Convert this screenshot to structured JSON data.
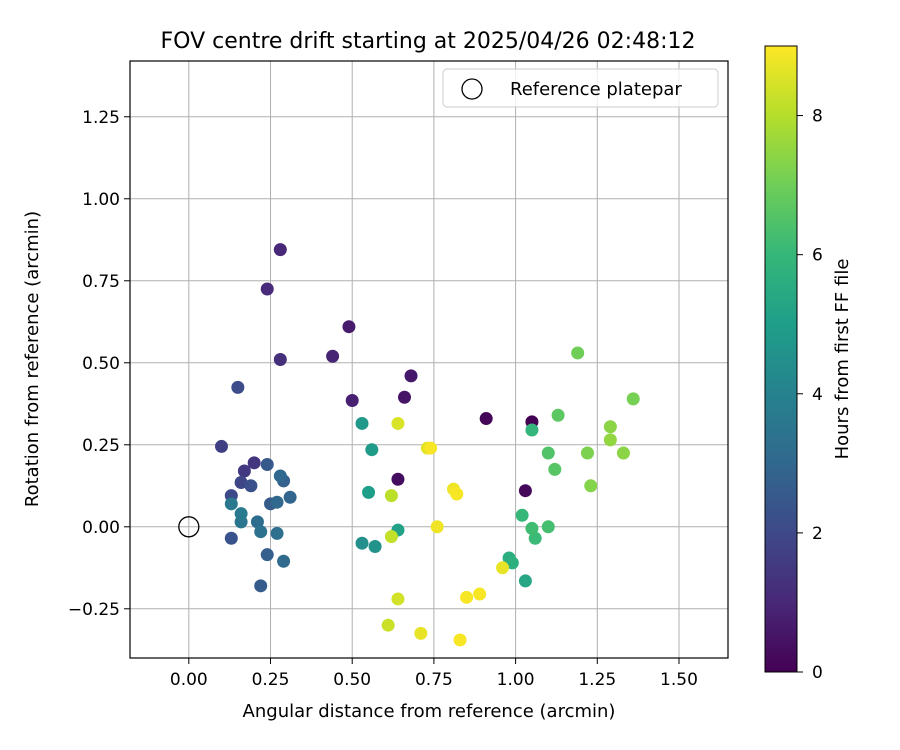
{
  "chart_data": {
    "type": "scatter",
    "title": "FOV centre drift starting at 2025/04/26 02:48:12",
    "xlabel": "Angular distance from reference (arcmin)",
    "ylabel": "Rotation from reference (arcmin)",
    "xlim": [
      -0.18,
      1.65
    ],
    "ylim": [
      -0.4,
      1.42
    ],
    "xticks": [
      "0.00",
      "0.25",
      "0.50",
      "0.75",
      "1.00",
      "1.25",
      "1.50"
    ],
    "yticks": [
      "−0.25",
      "0.00",
      "0.25",
      "0.50",
      "0.75",
      "1.00",
      "1.25"
    ],
    "grid": true,
    "legend": {
      "placement": "top-right",
      "entries": [
        {
          "label": "Reference platepar",
          "marker": "open-circle"
        }
      ]
    },
    "reference_point": {
      "x": 0.0,
      "y": 0.0
    },
    "colorbar": {
      "label": "Hours from first FF file",
      "min": 0,
      "max": 9,
      "ticks": [
        "0",
        "2",
        "4",
        "6",
        "8"
      ],
      "colormap": "viridis"
    },
    "colormap_stops": [
      "#440154",
      "#482878",
      "#3e4989",
      "#31688e",
      "#26828e",
      "#1f9e89",
      "#35b779",
      "#6ece58",
      "#b5de2b",
      "#fde725"
    ],
    "points": [
      {
        "x": 1.05,
        "y": 0.32,
        "c": 0.0
      },
      {
        "x": 0.91,
        "y": 0.33,
        "c": 0.1
      },
      {
        "x": 1.03,
        "y": 0.11,
        "c": 0.2
      },
      {
        "x": 0.64,
        "y": 0.145,
        "c": 0.3
      },
      {
        "x": 0.66,
        "y": 0.395,
        "c": 0.5
      },
      {
        "x": 0.68,
        "y": 0.46,
        "c": 0.6
      },
      {
        "x": 0.49,
        "y": 0.61,
        "c": 0.7
      },
      {
        "x": 0.5,
        "y": 0.385,
        "c": 0.8
      },
      {
        "x": 0.44,
        "y": 0.52,
        "c": 0.9
      },
      {
        "x": 0.28,
        "y": 0.845,
        "c": 1.0
      },
      {
        "x": 0.24,
        "y": 0.725,
        "c": 1.1
      },
      {
        "x": 0.28,
        "y": 0.51,
        "c": 1.2
      },
      {
        "x": 0.2,
        "y": 0.195,
        "c": 1.4
      },
      {
        "x": 0.17,
        "y": 0.17,
        "c": 1.5
      },
      {
        "x": 0.1,
        "y": 0.245,
        "c": 1.7
      },
      {
        "x": 0.16,
        "y": 0.135,
        "c": 1.9
      },
      {
        "x": 0.13,
        "y": 0.095,
        "c": 2.0
      },
      {
        "x": 0.15,
        "y": 0.425,
        "c": 2.1
      },
      {
        "x": 0.19,
        "y": 0.125,
        "c": 2.2
      },
      {
        "x": 0.13,
        "y": -0.035,
        "c": 2.3
      },
      {
        "x": 0.24,
        "y": 0.19,
        "c": 2.5
      },
      {
        "x": 0.25,
        "y": 0.07,
        "c": 2.6
      },
      {
        "x": 0.22,
        "y": -0.18,
        "c": 2.6
      },
      {
        "x": 0.24,
        "y": -0.085,
        "c": 2.7
      },
      {
        "x": 0.29,
        "y": 0.14,
        "c": 2.8
      },
      {
        "x": 0.31,
        "y": 0.09,
        "c": 2.9
      },
      {
        "x": 0.27,
        "y": 0.075,
        "c": 3.0
      },
      {
        "x": 0.28,
        "y": 0.155,
        "c": 3.0
      },
      {
        "x": 0.29,
        "y": -0.105,
        "c": 3.1
      },
      {
        "x": 0.21,
        "y": 0.015,
        "c": 3.2
      },
      {
        "x": 0.27,
        "y": -0.02,
        "c": 3.3
      },
      {
        "x": 0.22,
        "y": -0.015,
        "c": 3.4
      },
      {
        "x": 0.16,
        "y": 0.015,
        "c": 3.5
      },
      {
        "x": 0.13,
        "y": 0.07,
        "c": 3.6
      },
      {
        "x": 0.16,
        "y": 0.04,
        "c": 3.7
      },
      {
        "x": 0.53,
        "y": -0.05,
        "c": 4.5
      },
      {
        "x": 0.57,
        "y": -0.06,
        "c": 4.6
      },
      {
        "x": 0.53,
        "y": 0.315,
        "c": 4.8
      },
      {
        "x": 0.56,
        "y": 0.235,
        "c": 4.9
      },
      {
        "x": 0.55,
        "y": 0.105,
        "c": 5.0
      },
      {
        "x": 0.64,
        "y": -0.01,
        "c": 5.1
      },
      {
        "x": 1.03,
        "y": -0.165,
        "c": 5.3
      },
      {
        "x": 0.98,
        "y": -0.095,
        "c": 5.6
      },
      {
        "x": 0.99,
        "y": -0.11,
        "c": 5.7
      },
      {
        "x": 1.05,
        "y": 0.295,
        "c": 5.9
      },
      {
        "x": 1.02,
        "y": 0.035,
        "c": 6.0
      },
      {
        "x": 1.06,
        "y": -0.035,
        "c": 6.1
      },
      {
        "x": 1.05,
        "y": -0.005,
        "c": 6.2
      },
      {
        "x": 1.1,
        "y": 0.0,
        "c": 6.3
      },
      {
        "x": 1.1,
        "y": 0.225,
        "c": 6.5
      },
      {
        "x": 1.12,
        "y": 0.175,
        "c": 6.6
      },
      {
        "x": 1.13,
        "y": 0.34,
        "c": 6.7
      },
      {
        "x": 1.19,
        "y": 0.53,
        "c": 7.0
      },
      {
        "x": 1.36,
        "y": 0.39,
        "c": 7.1
      },
      {
        "x": 1.22,
        "y": 0.225,
        "c": 7.2
      },
      {
        "x": 1.23,
        "y": 0.125,
        "c": 7.3
      },
      {
        "x": 1.29,
        "y": 0.305,
        "c": 7.4
      },
      {
        "x": 1.29,
        "y": 0.265,
        "c": 7.5
      },
      {
        "x": 1.33,
        "y": 0.225,
        "c": 7.4
      },
      {
        "x": 0.62,
        "y": 0.095,
        "c": 8.1
      },
      {
        "x": 0.62,
        "y": -0.03,
        "c": 8.2
      },
      {
        "x": 0.61,
        "y": -0.3,
        "c": 8.3
      },
      {
        "x": 0.64,
        "y": -0.22,
        "c": 8.4
      },
      {
        "x": 0.64,
        "y": 0.315,
        "c": 8.5
      },
      {
        "x": 0.73,
        "y": 0.24,
        "c": 8.6
      },
      {
        "x": 0.71,
        "y": -0.325,
        "c": 8.7
      },
      {
        "x": 0.76,
        "y": 0.0,
        "c": 8.8
      },
      {
        "x": 0.81,
        "y": 0.115,
        "c": 8.8
      },
      {
        "x": 0.82,
        "y": 0.1,
        "c": 8.9
      },
      {
        "x": 0.83,
        "y": -0.345,
        "c": 8.9
      },
      {
        "x": 0.85,
        "y": -0.215,
        "c": 8.9
      },
      {
        "x": 0.89,
        "y": -0.205,
        "c": 8.9
      },
      {
        "x": 0.96,
        "y": -0.125,
        "c": 8.7
      },
      {
        "x": 0.74,
        "y": 0.24,
        "c": 8.9
      }
    ]
  }
}
